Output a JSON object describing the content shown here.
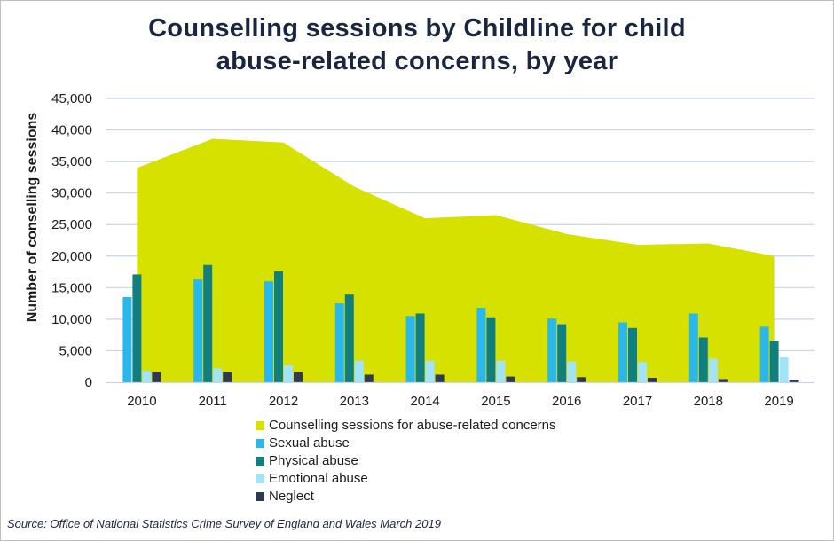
{
  "title_lines": [
    "Counselling sessions by Childline for child",
    "abuse-related concerns, by year"
  ],
  "source": "Source: Office of National Statistics Crime Survey of England  and Wales March 2019",
  "chart_data": {
    "type": "bar",
    "title": "Counselling sessions by Childline for child abuse-related concerns, by year",
    "ylabel": "Number of conselling sessions",
    "xlabel": "",
    "ylim": [
      0,
      45000
    ],
    "ytick_values": [
      0,
      5000,
      10000,
      15000,
      20000,
      25000,
      30000,
      35000,
      40000,
      45000
    ],
    "ytick_labels": [
      "0",
      "5,000",
      "10,000",
      "15,000",
      "20,000",
      "25,000",
      "30,000",
      "35,000",
      "40,000",
      "45,000"
    ],
    "grid": true,
    "legend_position": "bottom",
    "categories": [
      "2010",
      "2011",
      "2012",
      "2013",
      "2014",
      "2015",
      "2016",
      "2017",
      "2018",
      "2019"
    ],
    "area": {
      "name": "Counselling sessions for abuse-related concerns",
      "color": "#d6e100",
      "values": [
        34000,
        38600,
        38000,
        31000,
        26000,
        26500,
        23500,
        21800,
        22000,
        20000
      ]
    },
    "series": [
      {
        "name": "Sexual abuse",
        "color": "#2ab7ee",
        "values": [
          13500,
          16300,
          16000,
          12500,
          10500,
          11800,
          10100,
          9500,
          10900,
          8800
        ]
      },
      {
        "name": "Physical abuse",
        "color": "#117f80",
        "values": [
          17100,
          18600,
          17600,
          13900,
          10900,
          10300,
          9200,
          8600,
          7100,
          6600
        ]
      },
      {
        "name": "Emotional abuse",
        "color": "#a2e3fa",
        "values": [
          1800,
          2200,
          2700,
          3400,
          3400,
          3400,
          3300,
          3200,
          3700,
          4000
        ]
      },
      {
        "name": "Neglect",
        "color": "#303a4f",
        "values": [
          1600,
          1600,
          1600,
          1200,
          1200,
          900,
          800,
          700,
          500,
          400
        ]
      }
    ]
  }
}
